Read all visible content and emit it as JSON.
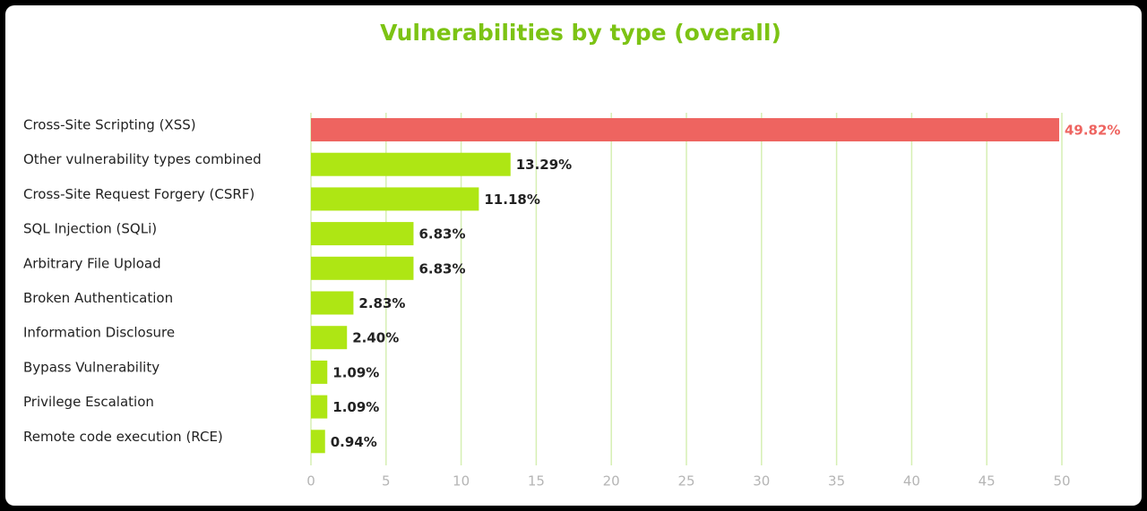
{
  "chart_data": {
    "type": "bar",
    "orientation": "horizontal",
    "title": "Vulnerabilities by type (overall)",
    "categories": [
      "Cross-Site Scripting (XSS)",
      "Other vulnerability types combined",
      "Cross-Site Request Forgery (CSRF)",
      "SQL Injection (SQLi)",
      "Arbitrary File Upload",
      "Broken Authentication",
      "Information Disclosure",
      "Bypass Vulnerability",
      "Privilege Escalation",
      "Remote code execution (RCE)"
    ],
    "values": [
      49.82,
      13.29,
      11.18,
      6.83,
      6.83,
      2.83,
      2.4,
      1.09,
      1.09,
      0.94
    ],
    "value_labels": [
      "49.82%",
      "13.29%",
      "11.18%",
      "6.83%",
      "6.83%",
      "2.83%",
      "2.40%",
      "1.09%",
      "1.09%",
      "0.94%"
    ],
    "colors": [
      "#ee6460",
      "#aee614",
      "#aee614",
      "#aee614",
      "#aee614",
      "#aee614",
      "#aee614",
      "#aee614",
      "#aee614",
      "#aee614"
    ],
    "value_label_colors": [
      "#ee6460",
      "#222222",
      "#222222",
      "#222222",
      "#222222",
      "#222222",
      "#222222",
      "#222222",
      "#222222",
      "#222222"
    ],
    "xlim": [
      0,
      50
    ],
    "xticks": [
      0,
      5,
      10,
      15,
      20,
      25,
      30,
      35,
      40,
      45,
      50
    ],
    "grid": true,
    "grid_color": "#d6efb3"
  }
}
